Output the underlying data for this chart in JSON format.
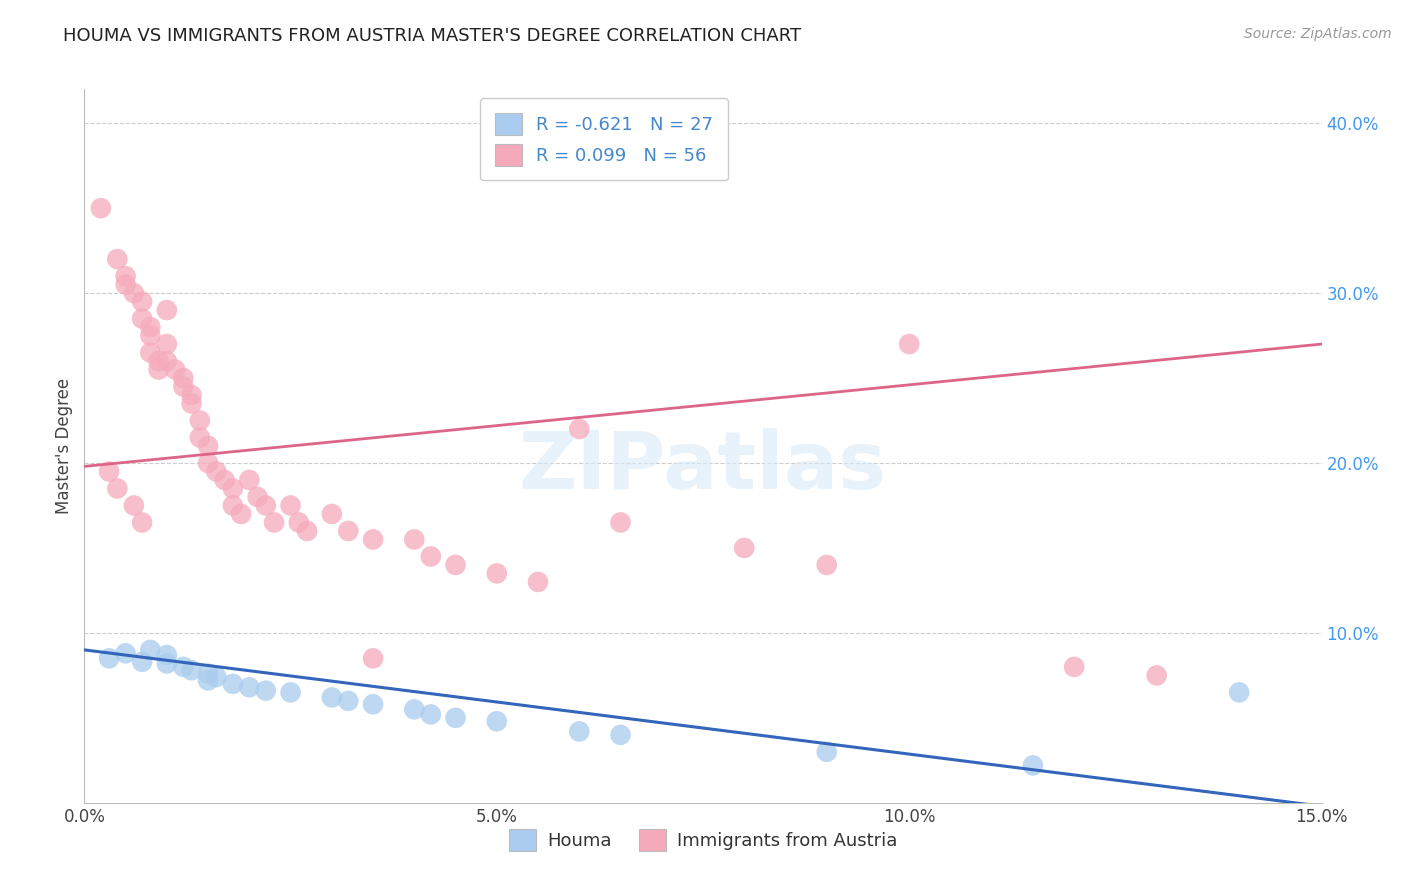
{
  "title": "HOUMA VS IMMIGRANTS FROM AUSTRIA MASTER'S DEGREE CORRELATION CHART",
  "source": "Source: ZipAtlas.com",
  "ylabel": "Master's Degree",
  "legend_label_blue": "Houma",
  "legend_label_pink": "Immigrants from Austria",
  "r_blue": -0.621,
  "n_blue": 27,
  "r_pink": 0.099,
  "n_pink": 56,
  "xlim": [
    0.0,
    0.15
  ],
  "ylim": [
    0.0,
    0.42
  ],
  "x_ticks": [
    0.0,
    0.05,
    0.1,
    0.15
  ],
  "x_tick_labels": [
    "0.0%",
    "5.0%",
    "10.0%",
    "15.0%"
  ],
  "y_ticks": [
    0.1,
    0.2,
    0.3,
    0.4
  ],
  "y_tick_labels": [
    "10.0%",
    "20.0%",
    "30.0%",
    "40.0%"
  ],
  "color_blue": "#aaccee",
  "color_pink": "#f5aabb",
  "line_color_blue": "#3366bb",
  "line_color_pink": "#dd6688",
  "background_color": "#ffffff",
  "grid_color": "#cccccc",
  "watermark": "ZIPatlas",
  "blue_x": [
    0.003,
    0.005,
    0.007,
    0.008,
    0.01,
    0.01,
    0.012,
    0.013,
    0.015,
    0.015,
    0.016,
    0.018,
    0.02,
    0.022,
    0.025,
    0.03,
    0.032,
    0.035,
    0.04,
    0.042,
    0.045,
    0.05,
    0.06,
    0.065,
    0.09,
    0.115,
    0.14
  ],
  "blue_y": [
    0.085,
    0.088,
    0.083,
    0.09,
    0.087,
    0.082,
    0.08,
    0.078,
    0.076,
    0.072,
    0.074,
    0.07,
    0.068,
    0.066,
    0.065,
    0.062,
    0.06,
    0.058,
    0.055,
    0.052,
    0.05,
    0.048,
    0.042,
    0.04,
    0.03,
    0.022,
    0.065
  ],
  "pink_x": [
    0.002,
    0.004,
    0.005,
    0.005,
    0.006,
    0.007,
    0.007,
    0.008,
    0.008,
    0.008,
    0.009,
    0.009,
    0.01,
    0.01,
    0.01,
    0.011,
    0.012,
    0.012,
    0.013,
    0.013,
    0.014,
    0.014,
    0.015,
    0.015,
    0.016,
    0.017,
    0.018,
    0.018,
    0.019,
    0.02,
    0.021,
    0.022,
    0.023,
    0.025,
    0.026,
    0.027,
    0.03,
    0.032,
    0.035,
    0.04,
    0.042,
    0.045,
    0.05,
    0.055,
    0.06,
    0.065,
    0.08,
    0.09,
    0.1,
    0.003,
    0.004,
    0.006,
    0.007,
    0.035,
    0.12,
    0.13
  ],
  "pink_y": [
    0.35,
    0.32,
    0.31,
    0.305,
    0.3,
    0.295,
    0.285,
    0.28,
    0.275,
    0.265,
    0.26,
    0.255,
    0.29,
    0.27,
    0.26,
    0.255,
    0.25,
    0.245,
    0.24,
    0.235,
    0.225,
    0.215,
    0.21,
    0.2,
    0.195,
    0.19,
    0.185,
    0.175,
    0.17,
    0.19,
    0.18,
    0.175,
    0.165,
    0.175,
    0.165,
    0.16,
    0.17,
    0.16,
    0.155,
    0.155,
    0.145,
    0.14,
    0.135,
    0.13,
    0.22,
    0.165,
    0.15,
    0.14,
    0.27,
    0.195,
    0.185,
    0.175,
    0.165,
    0.085,
    0.08,
    0.075
  ]
}
